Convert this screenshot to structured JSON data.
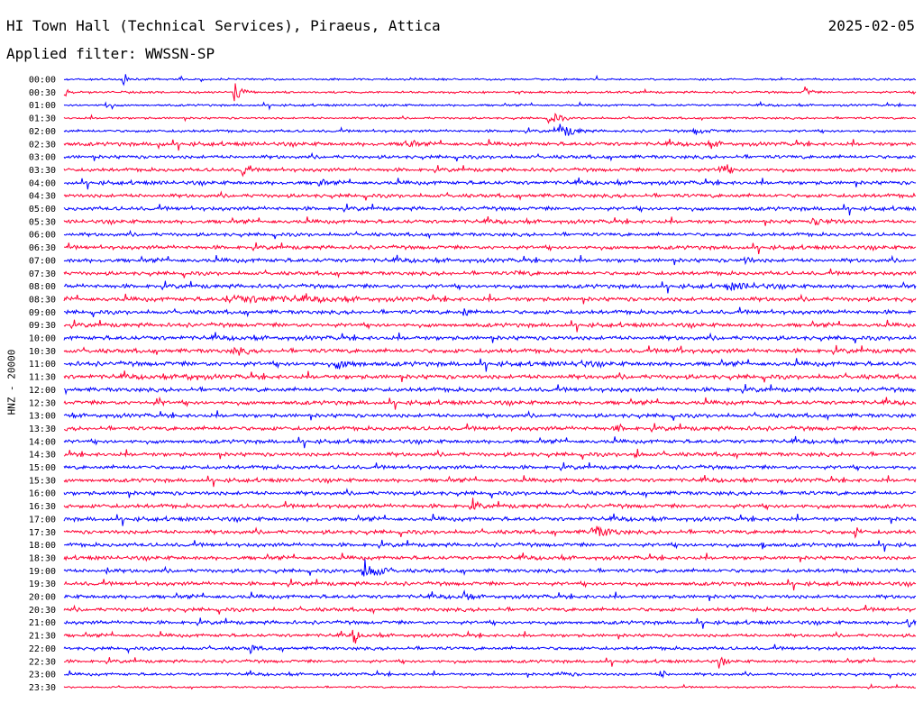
{
  "header": {
    "title": "HI Town Hall (Technical Services), Piraeus, Attica",
    "date": "2025-02-05",
    "filter": "Applied filter: WWSSN-SP",
    "channel_label": "HNZ - 20000"
  },
  "colors": {
    "blue": "#0000ff",
    "red": "#ff0033",
    "background": "#ffffff",
    "text": "#000000"
  },
  "chart_data": {
    "type": "line",
    "description_type": "helicorder",
    "channel": "HNZ - 20000",
    "row_labels": [
      "00:00",
      "00:30",
      "01:00",
      "01:30",
      "02:00",
      "02:30",
      "03:00",
      "03:30",
      "04:00",
      "04:30",
      "05:00",
      "05:30",
      "06:00",
      "06:30",
      "07:00",
      "07:30",
      "08:00",
      "08:30",
      "09:00",
      "09:30",
      "10:00",
      "10:30",
      "11:00",
      "11:30",
      "12:00",
      "12:30",
      "13:00",
      "13:30",
      "14:00",
      "14:30",
      "15:00",
      "15:30",
      "16:00",
      "16:30",
      "17:00",
      "17:30",
      "18:00",
      "18:30",
      "19:00",
      "19:30",
      "20:00",
      "20:30",
      "21:00",
      "21:30",
      "22:00",
      "22:30",
      "23:00",
      "23:30"
    ],
    "row_colors": [
      "blue",
      "red",
      "blue",
      "red",
      "blue",
      "red",
      "blue",
      "red",
      "blue",
      "red",
      "blue",
      "red",
      "blue",
      "red",
      "blue",
      "red",
      "blue",
      "red",
      "blue",
      "red",
      "blue",
      "red",
      "blue",
      "red",
      "blue",
      "red",
      "blue",
      "red",
      "blue",
      "red",
      "blue",
      "red",
      "blue",
      "red",
      "blue",
      "red",
      "blue",
      "red",
      "blue",
      "red",
      "blue",
      "red",
      "blue",
      "red",
      "blue",
      "red",
      "blue",
      "red"
    ],
    "row_noise": [
      0.8,
      0.9,
      0.9,
      0.9,
      1.1,
      1.6,
      1.5,
      1.5,
      1.6,
      1.6,
      1.6,
      1.6,
      1.5,
      1.6,
      1.7,
      1.6,
      1.7,
      1.8,
      1.7,
      1.7,
      1.8,
      1.8,
      1.9,
      1.9,
      1.8,
      1.7,
      1.7,
      1.7,
      1.6,
      1.7,
      1.6,
      1.6,
      1.7,
      1.7,
      1.7,
      1.7,
      1.6,
      1.6,
      1.6,
      1.6,
      1.6,
      1.6,
      1.5,
      1.4,
      1.4,
      1.3,
      1.2,
      0.8
    ],
    "events": [
      {
        "row": 0,
        "t": 0.07,
        "amp": 6,
        "dur": 0.01
      },
      {
        "row": 1,
        "t": 0.0,
        "amp": 6,
        "dur": 0.01
      },
      {
        "row": 1,
        "t": 0.2,
        "amp": 9,
        "dur": 0.015
      },
      {
        "row": 1,
        "t": 0.87,
        "amp": 6,
        "dur": 0.01
      },
      {
        "row": 2,
        "t": 0.05,
        "amp": 5,
        "dur": 0.01
      },
      {
        "row": 3,
        "t": 0.57,
        "amp": 8,
        "dur": 0.015
      },
      {
        "row": 4,
        "t": 0.58,
        "amp": 7,
        "dur": 0.03
      },
      {
        "row": 4,
        "t": 0.74,
        "amp": 4,
        "dur": 0.03
      },
      {
        "row": 5,
        "t": 0.11,
        "amp": 5,
        "dur": 0.01
      },
      {
        "row": 5,
        "t": 0.4,
        "amp": 8,
        "dur": 0.015
      },
      {
        "row": 5,
        "t": 0.76,
        "amp": 4,
        "dur": 0.02
      },
      {
        "row": 7,
        "t": 0.21,
        "amp": 9,
        "dur": 0.01
      },
      {
        "row": 7,
        "t": 0.77,
        "amp": 7,
        "dur": 0.02
      },
      {
        "row": 8,
        "t": 0.3,
        "amp": 6,
        "dur": 0.01
      },
      {
        "row": 11,
        "t": 0.88,
        "amp": 4,
        "dur": 0.07
      },
      {
        "row": 14,
        "t": 0.8,
        "amp": 5,
        "dur": 0.015
      },
      {
        "row": 15,
        "t": 0.53,
        "amp": 3,
        "dur": 0.06
      },
      {
        "row": 16,
        "t": 0.78,
        "amp": 4,
        "dur": 0.1
      },
      {
        "row": 17,
        "t": 0.19,
        "amp": 4,
        "dur": 0.3
      },
      {
        "row": 18,
        "t": 0.47,
        "amp": 6,
        "dur": 0.01
      },
      {
        "row": 21,
        "t": 0.2,
        "amp": 5,
        "dur": 0.03
      },
      {
        "row": 21,
        "t": 0.72,
        "amp": 6,
        "dur": 0.01
      },
      {
        "row": 22,
        "t": 0.32,
        "amp": 5,
        "dur": 0.06
      },
      {
        "row": 22,
        "t": 0.6,
        "amp": 4,
        "dur": 0.05
      },
      {
        "row": 23,
        "t": 0.14,
        "amp": 4,
        "dur": 0.05
      },
      {
        "row": 25,
        "t": 0.11,
        "amp": 6,
        "dur": 0.01
      },
      {
        "row": 27,
        "t": 0.65,
        "amp": 6,
        "dur": 0.01
      },
      {
        "row": 29,
        "t": 0.67,
        "amp": 7,
        "dur": 0.01
      },
      {
        "row": 33,
        "t": 0.48,
        "amp": 7,
        "dur": 0.01
      },
      {
        "row": 35,
        "t": 0.62,
        "amp": 7,
        "dur": 0.04
      },
      {
        "row": 35,
        "t": 0.93,
        "amp": 6,
        "dur": 0.01
      },
      {
        "row": 36,
        "t": 0.82,
        "amp": 6,
        "dur": 0.01
      },
      {
        "row": 38,
        "t": 0.35,
        "amp": 11,
        "dur": 0.03
      },
      {
        "row": 38,
        "t": 0.05,
        "amp": 5,
        "dur": 0.01
      },
      {
        "row": 40,
        "t": 0.47,
        "amp": 7,
        "dur": 0.01
      },
      {
        "row": 42,
        "t": 0.99,
        "amp": 8,
        "dur": 0.01
      },
      {
        "row": 43,
        "t": 0.34,
        "amp": 8,
        "dur": 0.01
      },
      {
        "row": 44,
        "t": 0.22,
        "amp": 6,
        "dur": 0.01
      },
      {
        "row": 45,
        "t": 0.77,
        "amp": 6,
        "dur": 0.01
      },
      {
        "row": 46,
        "t": 0.58,
        "amp": 3,
        "dur": 0.04
      },
      {
        "row": 46,
        "t": 0.7,
        "amp": 6,
        "dur": 0.01
      }
    ]
  }
}
